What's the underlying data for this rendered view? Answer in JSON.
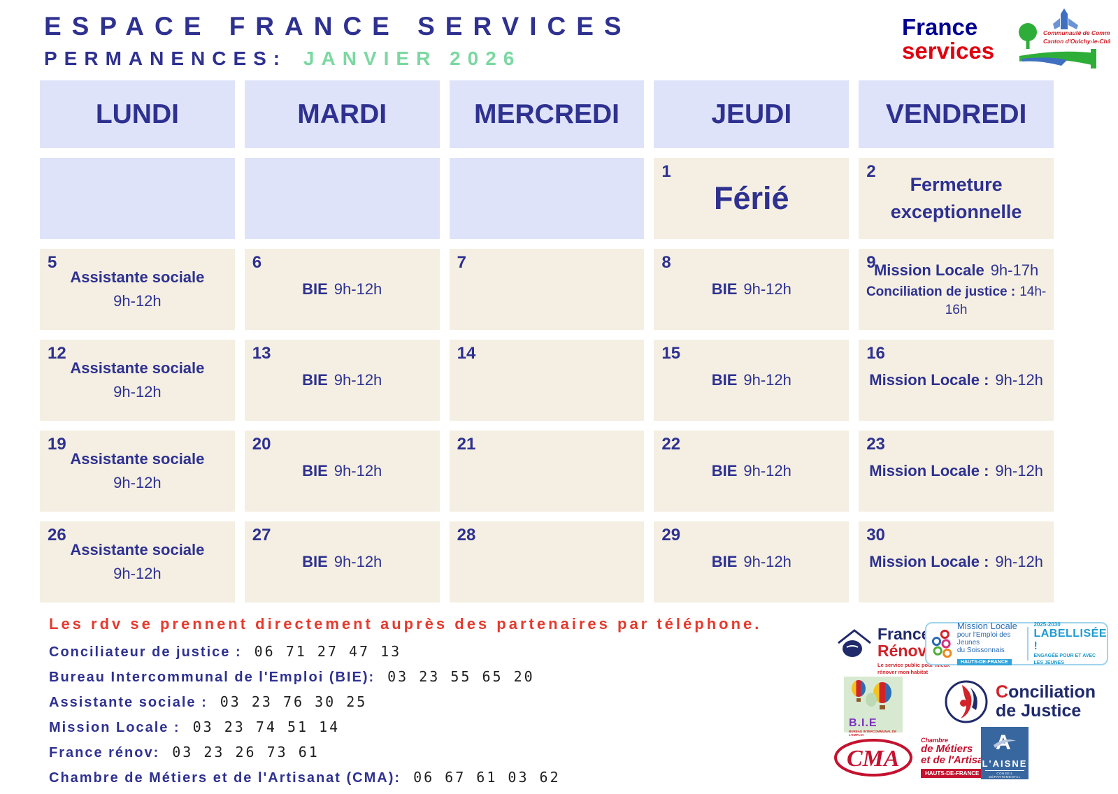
{
  "header": {
    "title": "ESPACE FRANCE SERVICES",
    "subtitle_label": "PERMANENCES:",
    "subtitle_month": "JANVIER 2026",
    "accent_navy": "#2e3190",
    "accent_green": "#7cd8a2",
    "france_services_logo": {
      "line1": "France",
      "line2": "services"
    },
    "cc_logo": {
      "line1": "Communauté de Communes",
      "line2": "Canton d'Oulchy-le-Château"
    }
  },
  "calendar": {
    "day_headers": [
      "LUNDI",
      "MARDI",
      "MERCREDI",
      "JEUDI",
      "VENDREDI"
    ],
    "weeks": [
      [
        {
          "day": "",
          "kind": "blank"
        },
        {
          "day": "",
          "kind": "blank"
        },
        {
          "day": "",
          "kind": "blank"
        },
        {
          "day": "1",
          "kind": "filled",
          "lines": [
            {
              "b": "Férié",
              "cls": "xl"
            }
          ]
        },
        {
          "day": "2",
          "kind": "filled",
          "lines": [
            {
              "b": "Fermeture exceptionnelle",
              "cls": "lg"
            }
          ]
        }
      ],
      [
        {
          "day": "5",
          "kind": "filled",
          "lines": [
            {
              "b": "Assistante sociale"
            },
            {
              "r": "9h-12h"
            }
          ]
        },
        {
          "day": "6",
          "kind": "filled",
          "lines": [
            {
              "b": "BIE",
              "r": "9h-12h"
            }
          ]
        },
        {
          "day": "7",
          "kind": "filled",
          "lines": []
        },
        {
          "day": "8",
          "kind": "filled",
          "lines": [
            {
              "b": "BIE",
              "r": "9h-12h"
            }
          ]
        },
        {
          "day": "9",
          "kind": "filled",
          "lines": [
            {
              "b": "Mission Locale",
              "r": "9h-17h"
            },
            {
              "b": "Conciliation de justice :",
              "r": "14h-16h",
              "cls": "sm"
            }
          ]
        }
      ],
      [
        {
          "day": "12",
          "kind": "filled",
          "lines": [
            {
              "b": "Assistante sociale"
            },
            {
              "r": "9h-12h"
            }
          ]
        },
        {
          "day": "13",
          "kind": "filled",
          "lines": [
            {
              "b": "BIE",
              "r": "9h-12h"
            }
          ]
        },
        {
          "day": "14",
          "kind": "filled",
          "lines": []
        },
        {
          "day": "15",
          "kind": "filled",
          "lines": [
            {
              "b": "BIE",
              "r": "9h-12h"
            }
          ]
        },
        {
          "day": "16",
          "kind": "filled",
          "lines": [
            {
              "b": "Mission Locale :",
              "r": "9h-12h"
            }
          ]
        }
      ],
      [
        {
          "day": "19",
          "kind": "filled",
          "lines": [
            {
              "b": "Assistante sociale"
            },
            {
              "r": "9h-12h"
            }
          ]
        },
        {
          "day": "20",
          "kind": "filled",
          "lines": [
            {
              "b": "BIE",
              "r": "9h-12h"
            }
          ]
        },
        {
          "day": "21",
          "kind": "filled",
          "lines": []
        },
        {
          "day": "22",
          "kind": "filled",
          "lines": [
            {
              "b": "BIE",
              "r": "9h-12h"
            }
          ]
        },
        {
          "day": "23",
          "kind": "filled",
          "lines": [
            {
              "b": "Mission Locale :",
              "r": "9h-12h"
            }
          ]
        }
      ],
      [
        {
          "day": "26",
          "kind": "filled",
          "lines": [
            {
              "b": "Assistante sociale"
            },
            {
              "r": "9h-12h"
            }
          ]
        },
        {
          "day": "27",
          "kind": "filled",
          "lines": [
            {
              "b": "BIE",
              "r": "9h-12h"
            }
          ]
        },
        {
          "day": "28",
          "kind": "filled",
          "lines": []
        },
        {
          "day": "29",
          "kind": "filled",
          "lines": [
            {
              "b": "BIE",
              "r": "9h-12h"
            }
          ]
        },
        {
          "day": "30",
          "kind": "filled",
          "lines": [
            {
              "b": "Mission Locale :",
              "r": "9h-12h"
            }
          ]
        }
      ]
    ]
  },
  "footer": {
    "notice": "Les rdv se prennent directement auprès des partenaires par téléphone.",
    "contacts": [
      {
        "label": "Conciliateur de justice :",
        "phone": "06 71 27 47 13"
      },
      {
        "label": "Bureau Intercommunal de l'Emploi (BIE):",
        "phone": "03 23 55 65 20"
      },
      {
        "label": "Assistante sociale :",
        "phone": "03 23 76 30 25"
      },
      {
        "label": "Mission Locale :",
        "phone": "03 23 74 51 14"
      },
      {
        "label": "France rénov:",
        "phone": "03 23 26 73 61"
      },
      {
        "label": "Chambre de Métiers et de l'Artisanat (CMA):",
        "phone": "06 67 61 03 62"
      }
    ]
  },
  "partner_logos": {
    "france_renov": {
      "name1": "France",
      "name2": "Rénov’",
      "tagline1": "Le service public pour mieux",
      "tagline2": "rénover mon habitat"
    },
    "mission_locale": {
      "line1": "Mission Locale",
      "line2": "pour l'Emploi des Jeunes",
      "line3": "du Soissonnais",
      "region": "HAUTS-DE-FRANCE",
      "years": "2025-2030",
      "label": "LABELLISÉE !",
      "sub1": "ENGAGÉE POUR ET AVEC",
      "sub2": "LES JEUNES"
    },
    "bie": {
      "name": "B.I.E",
      "sub": "BUREAU INTERCOMMUNAL DE L'EMPLOI"
    },
    "conciliation": {
      "line1": "Conciliation",
      "line2_a": "de",
      "line2_b": "Justice"
    },
    "cma": {
      "letters": "CMA",
      "line1": "Chambre",
      "line2": "de Métiers",
      "line3": "et de l'Artisanat",
      "region": "HAUTS-DE-FRANCE"
    },
    "aisne": {
      "name": "L'AISNE",
      "sub": "CONSEIL DÉPARTEMENTAL"
    }
  }
}
